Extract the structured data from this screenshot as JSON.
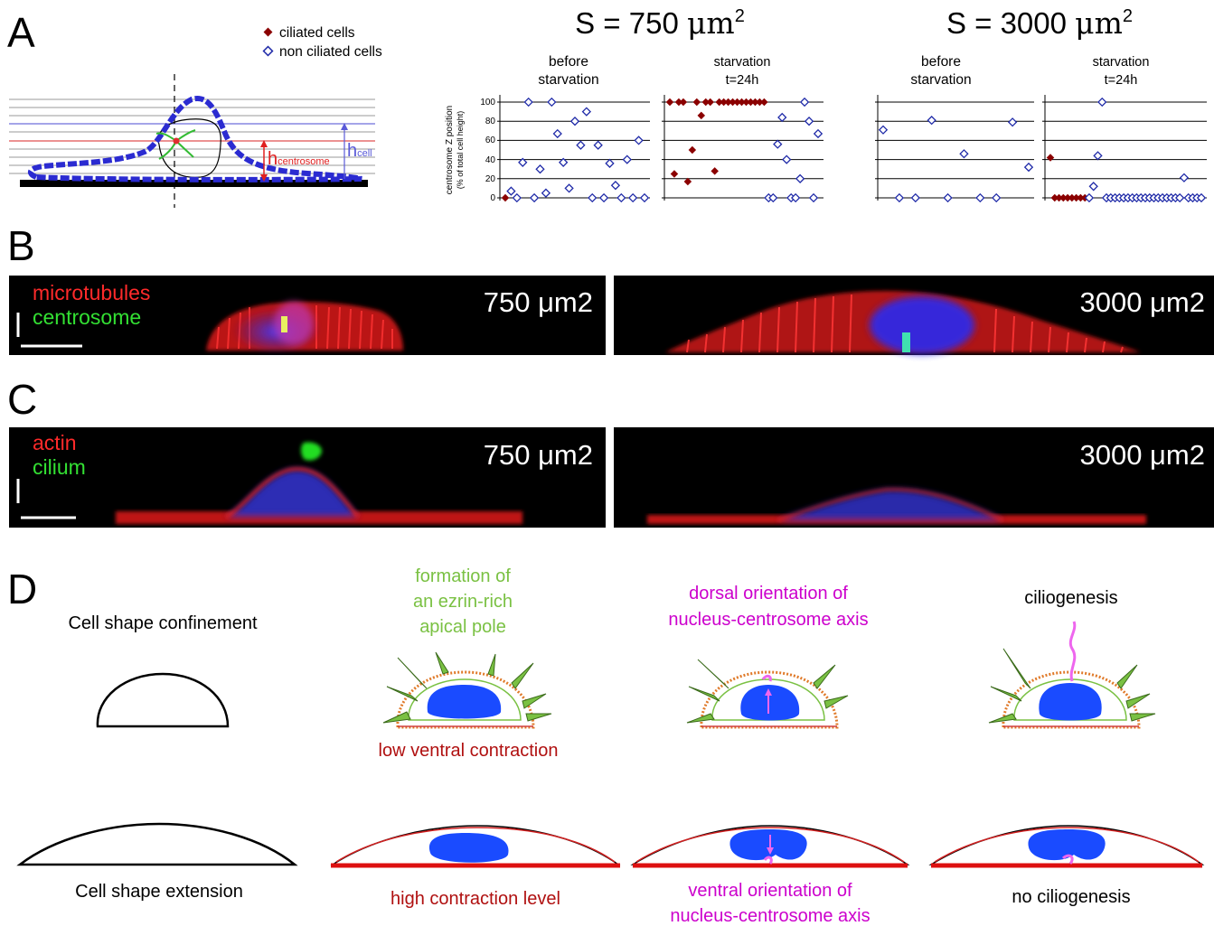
{
  "panel_letters": [
    "A",
    "B",
    "C",
    "D"
  ],
  "colors": {
    "ciliated": "#8b0000",
    "non_ciliated": "#1f2aa8",
    "cell_outline": "#2b2bd1",
    "microtubules": "#ff2020",
    "centrosome": "#33dd33",
    "ezrin": "#7ac143",
    "magenta": "#cc00cc",
    "dark_red": "#b01010",
    "nucleus": "#1a4bff"
  },
  "panelA": {
    "legend": {
      "ciliated": "ciliated cells",
      "non_ciliated": "non ciliated cells"
    },
    "schematic": {
      "h_centrosome": "h",
      "h_centrosome_sub": "centrosome",
      "h_cell": "h",
      "h_cell_sub": "cell"
    },
    "groups": [
      {
        "title_prefix": "S = 750 ",
        "title_unit": "μm",
        "title_sup": "2"
      },
      {
        "title_prefix": "S = 3000 ",
        "title_unit": "μm",
        "title_sup": "2"
      }
    ],
    "subtitles": [
      [
        "before",
        "starvation"
      ],
      [
        "starvation",
        "t=24h"
      ],
      [
        "before",
        "starvation"
      ],
      [
        "starvation",
        "t=24h"
      ]
    ],
    "ylabel_line1": "centrosome Z position",
    "ylabel_line2": "(% of total cell height)",
    "yticks": [
      0,
      20,
      40,
      60,
      80,
      100
    ]
  },
  "chart_data": [
    {
      "type": "scatter",
      "title": "S = 750 μm2 — before starvation",
      "ylim": [
        0,
        100
      ],
      "grid": true,
      "series": [
        {
          "name": "ciliated cells",
          "y": [
            0
          ]
        },
        {
          "name": "non ciliated cells",
          "y": [
            7,
            0,
            37,
            100,
            0,
            30,
            5,
            100,
            67,
            37,
            10,
            80,
            55,
            90,
            0,
            55,
            0,
            36,
            13,
            0,
            40,
            0,
            60,
            0
          ]
        }
      ]
    },
    {
      "type": "scatter",
      "title": "S = 750 μm2 — starvation t=24h",
      "ylim": [
        0,
        100
      ],
      "grid": true,
      "series": [
        {
          "name": "ciliated cells",
          "y": [
            100,
            25,
            100,
            100,
            17,
            50,
            100,
            86,
            100,
            100,
            28,
            100,
            100,
            100,
            100,
            100,
            100,
            100,
            100,
            100,
            100,
            100
          ]
        },
        {
          "name": "non ciliated cells",
          "y": [
            0,
            0,
            56,
            84,
            40,
            0,
            0,
            20,
            100,
            80,
            0,
            67
          ]
        }
      ]
    },
    {
      "type": "scatter",
      "title": "S = 3000 μm2 — before starvation",
      "ylim": [
        0,
        100
      ],
      "grid": true,
      "series": [
        {
          "name": "non ciliated cells",
          "y": [
            71,
            0,
            0,
            81,
            0,
            46,
            0,
            0,
            79,
            32
          ]
        }
      ]
    },
    {
      "type": "scatter",
      "title": "S = 3000 μm2 — starvation t=24h",
      "ylim": [
        0,
        100
      ],
      "grid": true,
      "series": [
        {
          "name": "ciliated cells",
          "y": [
            42,
            0,
            0,
            0,
            0,
            0,
            0,
            0,
            0
          ]
        },
        {
          "name": "non ciliated cells",
          "y": [
            0,
            12,
            44,
            101,
            0,
            0,
            0,
            0,
            0,
            0,
            0,
            0,
            0,
            0,
            0,
            0,
            0,
            0,
            0,
            0,
            0,
            0,
            21,
            0,
            0,
            0,
            0
          ]
        }
      ]
    }
  ],
  "panelB": {
    "label_line1": "microtubules",
    "label_line2": "centrosome",
    "left_size": "750 μm2",
    "right_size": "3000 μm2"
  },
  "panelC": {
    "label_line1": "actin",
    "label_line2": "cilium",
    "left_size": "750 μm2",
    "right_size": "3000 μm2"
  },
  "panelD": {
    "confinement": "Cell shape confinement",
    "extension": "Cell shape extension",
    "ezrin": [
      "formation of",
      "an ezrin-rich",
      "apical pole"
    ],
    "low_ventral": "low ventral contraction",
    "dorsal": [
      "dorsal orientation of",
      "nucleus-centrosome axis"
    ],
    "ciliogenesis": "ciliogenesis",
    "high_contraction": "high contraction level",
    "ventral": [
      "ventral orientation of",
      "nucleus-centrosome axis"
    ],
    "no_ciliogenesis": "no ciliogenesis"
  }
}
